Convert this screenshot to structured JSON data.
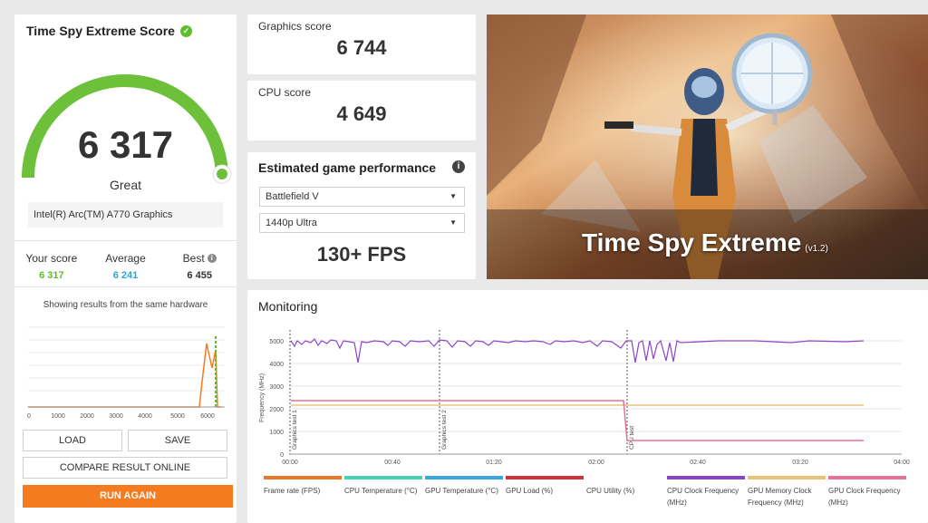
{
  "score_card": {
    "title": "Time Spy Extreme Score",
    "score": "6 317",
    "score_value": 6317,
    "rating": "Great",
    "hardware": "Intel(R) Arc(TM) A770 Graphics",
    "your_score_label": "Your score",
    "your_score": "6 317",
    "average_label": "Average",
    "average": "6 241",
    "best_label": "Best",
    "best": "6 455",
    "note": "Showing results from the same hardware",
    "histogram_ticks": [
      "0",
      "1000",
      "2000",
      "3000",
      "4000",
      "5000",
      "6000"
    ],
    "buttons": {
      "load": "LOAD",
      "save": "SAVE",
      "compare": "COMPARE RESULT ONLINE",
      "run": "RUN AGAIN"
    }
  },
  "graphics": {
    "label": "Graphics score",
    "value": "6 744"
  },
  "cpu": {
    "label": "CPU score",
    "value": "4 649"
  },
  "game_perf": {
    "title": "Estimated game performance",
    "game": "Battlefield V",
    "preset": "1440p Ultra",
    "fps": "130+ FPS"
  },
  "banner": {
    "title": "Time Spy Extreme",
    "version": "(v1.2)"
  },
  "monitoring": {
    "title": "Monitoring",
    "y_label": "Frequency (MHz)",
    "y_ticks": [
      "5000",
      "4000",
      "3000",
      "2000",
      "1000",
      "0"
    ],
    "x_ticks": [
      "00:00",
      "00:40",
      "01:20",
      "02:00",
      "02:40",
      "03:20",
      "04:00"
    ],
    "markers": [
      "Graphics test 1",
      "Graphics test 2",
      "CPU test"
    ],
    "legend": [
      {
        "label": "Frame rate (FPS)",
        "color": "#e8762b"
      },
      {
        "label": "CPU Temperature (°C)",
        "color": "#3fd3b3"
      },
      {
        "label": "GPU Temperature (°C)",
        "color": "#3aa8e0"
      },
      {
        "label": "GPU Load (%)",
        "color": "#d2303a"
      },
      {
        "label": "CPU Utility (%)",
        "color": "#ffffff"
      },
      {
        "label": "CPU Clock Frequency (MHz)",
        "color": "#8e44c6"
      },
      {
        "label": "GPU Memory Clock Frequency (MHz)",
        "color": "#e8c37a"
      },
      {
        "label": "GPU Clock Frequency (MHz)",
        "color": "#e6719a"
      }
    ]
  },
  "colors": {
    "accent": "#f47b20",
    "good": "#5cbf2a",
    "average": "#2fa3d8"
  }
}
